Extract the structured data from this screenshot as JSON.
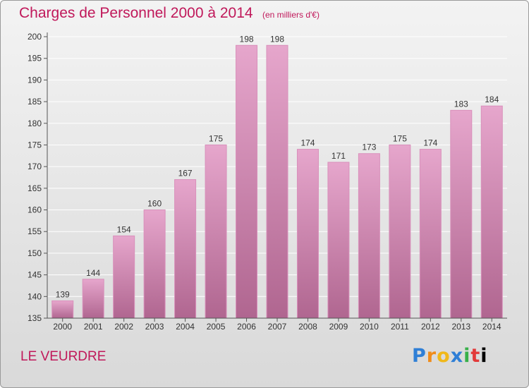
{
  "title": "Charges de Personnel 2000 à 2014",
  "subtitle": "(en milliers d'€)",
  "location": "LE VEURDRE",
  "logo_text": "Proxiti",
  "colors": {
    "bar_top": "#e6a6cc",
    "bar_bottom": "#b06690",
    "bar_edge": "#d990bb",
    "title": "#c0185a",
    "gridline": "#ffffff"
  },
  "chart_data": {
    "type": "bar",
    "categories": [
      "2000",
      "2001",
      "2002",
      "2003",
      "2004",
      "2005",
      "2006",
      "2007",
      "2008",
      "2009",
      "2010",
      "2011",
      "2012",
      "2013",
      "2014"
    ],
    "values": [
      139,
      144,
      154,
      160,
      167,
      175,
      198,
      198,
      174,
      171,
      173,
      175,
      174,
      183,
      184
    ],
    "ylim": [
      135,
      200
    ],
    "yticks": [
      135,
      140,
      145,
      150,
      155,
      160,
      165,
      170,
      175,
      180,
      185,
      190,
      195,
      200
    ],
    "grid": true,
    "title": "Charges de Personnel 2000 à 2014",
    "xlabel": "",
    "ylabel": ""
  }
}
